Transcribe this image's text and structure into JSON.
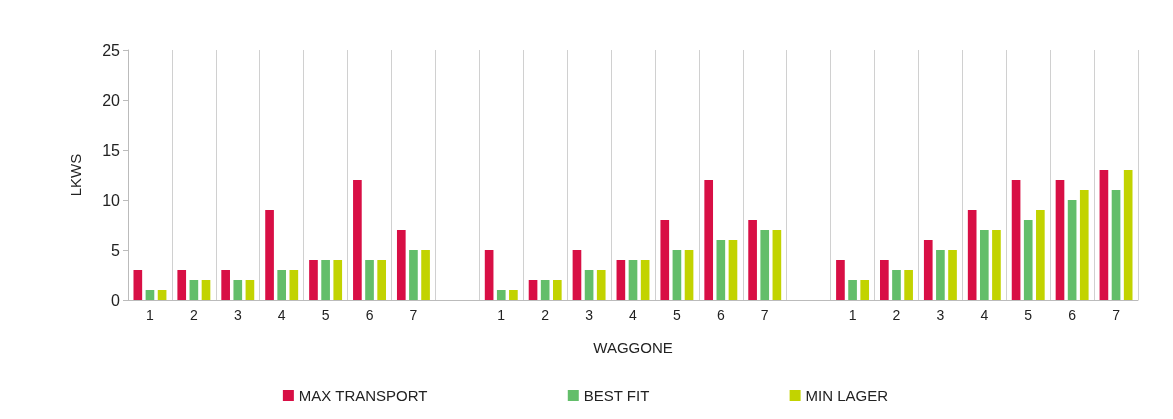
{
  "chart_data": {
    "type": "bar",
    "xlabel": "WAGGONE",
    "ylabel": "LKWS",
    "categories": [
      "1",
      "2",
      "3",
      "4",
      "5",
      "6",
      "7",
      null,
      "1",
      "2",
      "3",
      "4",
      "5",
      "6",
      "7",
      null,
      "1",
      "2",
      "3",
      "4",
      "5",
      "6",
      "7"
    ],
    "series": [
      {
        "name": "MAX TRANSPORT",
        "color": "#d80f45",
        "values": [
          3,
          3,
          3,
          9,
          4,
          12,
          7,
          null,
          5,
          2,
          5,
          4,
          8,
          12,
          8,
          null,
          4,
          4,
          6,
          9,
          12,
          12,
          13
        ]
      },
      {
        "name": "BEST FIT",
        "color": "#63be6a",
        "values": [
          1,
          2,
          2,
          3,
          4,
          4,
          5,
          null,
          1,
          2,
          3,
          4,
          5,
          6,
          7,
          null,
          2,
          3,
          5,
          7,
          8,
          10,
          11
        ]
      },
      {
        "name": "MIN LAGER",
        "color": "#c2d300",
        "values": [
          1,
          2,
          2,
          3,
          4,
          4,
          5,
          null,
          1,
          2,
          3,
          4,
          5,
          6,
          7,
          null,
          2,
          3,
          5,
          7,
          9,
          11,
          13
        ]
      }
    ],
    "ylim": [
      0,
      25
    ],
    "yticks": [
      0,
      5,
      10,
      15,
      20,
      25
    ],
    "grid": "x",
    "legend": "bottom"
  }
}
